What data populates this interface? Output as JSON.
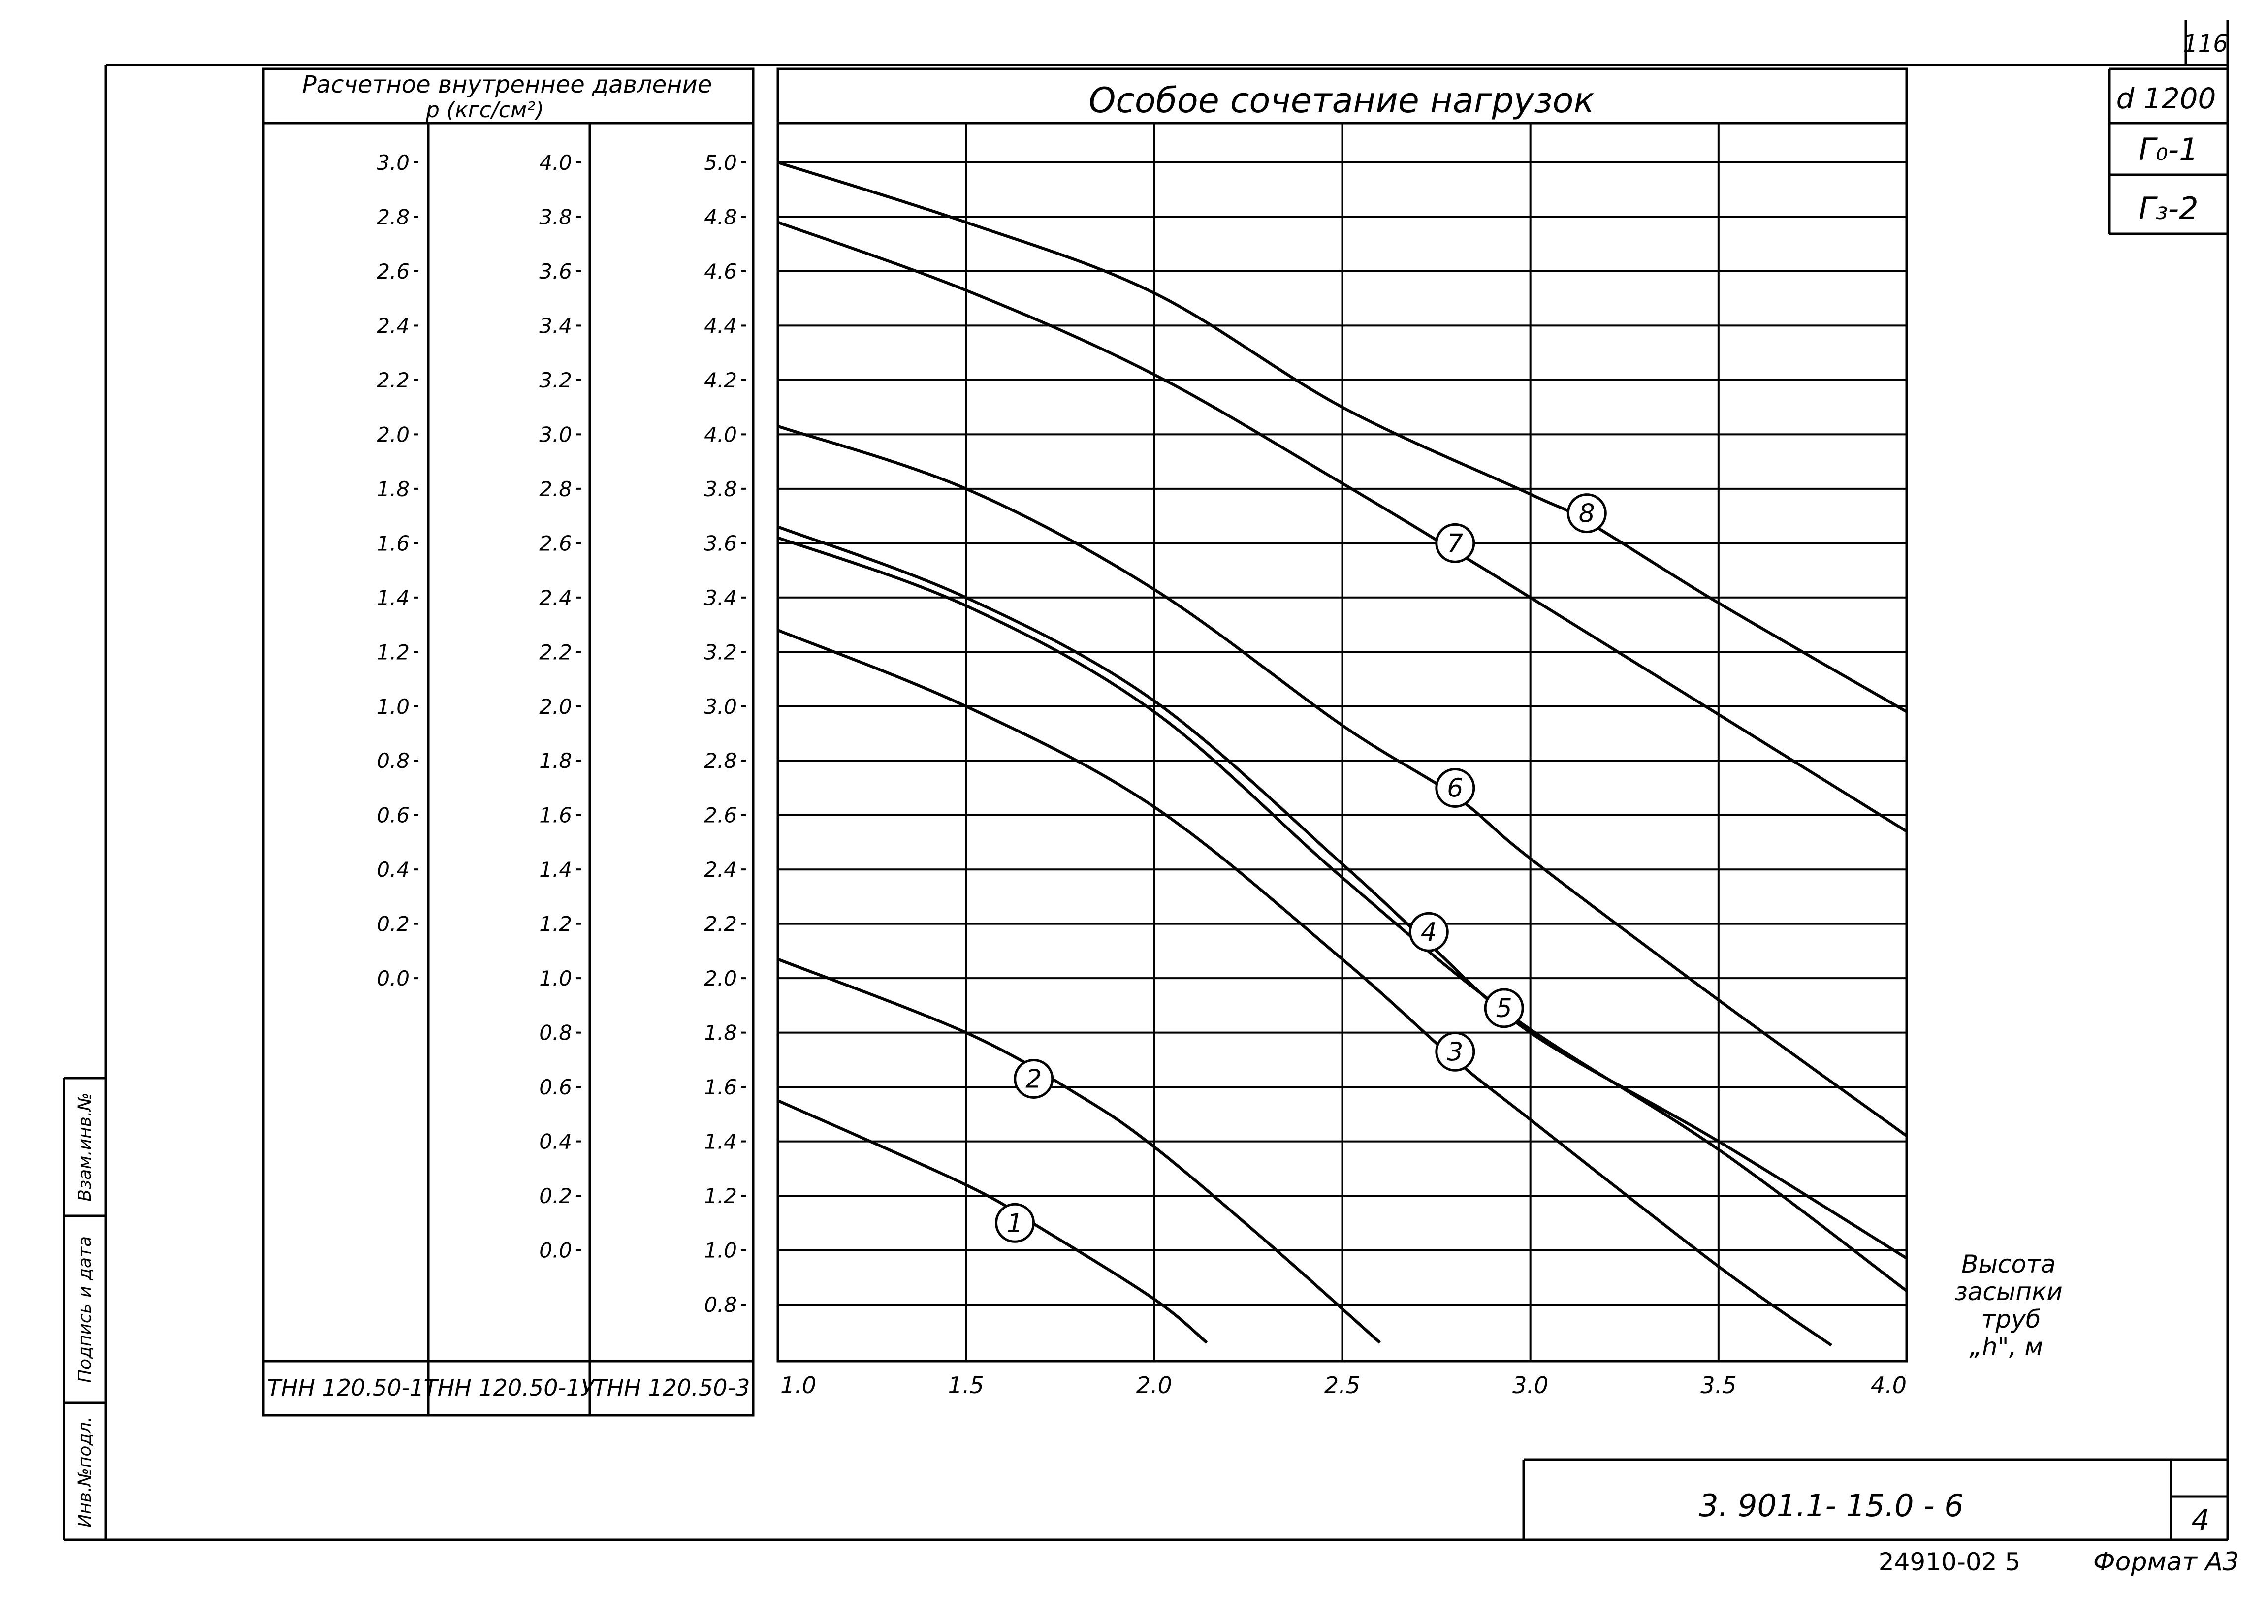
{
  "sheet": {
    "page_number": "116",
    "stamp": {
      "diameter": "d 1200",
      "g0": "Г₀-1",
      "g3": "Г₃-2"
    },
    "doc_code": "3. 901.1- 15.0 - 6",
    "sheet_number": "4",
    "bottom_code": "24910-02  5",
    "format": "Формат А3",
    "side_labels": [
      "Инв.№подл.",
      "Подпись и дата",
      "Взам.инв.№"
    ]
  },
  "pressure_table": {
    "header_line1": "Расчетное  внутреннее  давление",
    "header_line2": "р (кгс/см²)",
    "columns": [
      {
        "name": "ТНН 120.50-1",
        "ticks": [
          "3.0",
          "2.8",
          "2.6",
          "2.4",
          "2.2",
          "2.0",
          "1.8",
          "1.6",
          "1.4",
          "1.2",
          "1.0",
          "0.8",
          "0.6",
          "0.4",
          "0.2",
          "0.0"
        ]
      },
      {
        "name": "ТНН 120.50-1У",
        "ticks": [
          "4.0",
          "3.8",
          "3.6",
          "3.4",
          "3.2",
          "3.0",
          "2.8",
          "2.6",
          "2.4",
          "2.2",
          "2.0",
          "1.8",
          "1.6",
          "1.4",
          "1.2",
          "1.0",
          "0.8",
          "0.6",
          "0.4",
          "0.2",
          "0.0"
        ]
      },
      {
        "name": "ТНН 120.50-3",
        "ticks": [
          "5.0",
          "4.8",
          "4.6",
          "4.4",
          "4.2",
          "4.0",
          "3.8",
          "3.6",
          "3.4",
          "3.2",
          "3.0",
          "2.8",
          "2.6",
          "2.4",
          "2.2",
          "2.0",
          "1.8",
          "1.6",
          "1.4",
          "1.2",
          "1.0",
          "0.8"
        ]
      }
    ]
  },
  "chart_data": {
    "type": "line",
    "title": "Особое  сочетание  нагрузок",
    "xlabel": "Высота засыпки труб „h\", м",
    "xlim": [
      1.0,
      4.0
    ],
    "ylim": [
      0.7,
      5.0
    ],
    "x_ticks": [
      "1.0",
      "1.5",
      "2.0",
      "2.5",
      "3.0",
      "3.5",
      "4.0"
    ],
    "grid": true,
    "series": [
      {
        "name": "1",
        "points": [
          [
            1.0,
            1.55
          ],
          [
            1.5,
            1.24
          ],
          [
            1.7,
            1.08
          ],
          [
            2.0,
            0.82
          ],
          [
            2.14,
            0.66
          ]
        ]
      },
      {
        "name": "2",
        "points": [
          [
            1.0,
            2.07
          ],
          [
            1.5,
            1.8
          ],
          [
            1.8,
            1.57
          ],
          [
            2.0,
            1.38
          ],
          [
            2.3,
            1.03
          ],
          [
            2.6,
            0.66
          ]
        ]
      },
      {
        "name": "3",
        "points": [
          [
            1.0,
            3.28
          ],
          [
            1.5,
            3.0
          ],
          [
            2.0,
            2.63
          ],
          [
            2.5,
            2.07
          ],
          [
            2.8,
            1.7
          ],
          [
            3.0,
            1.48
          ],
          [
            3.5,
            0.94
          ],
          [
            3.8,
            0.65
          ]
        ]
      },
      {
        "name": "4",
        "points": [
          [
            1.0,
            3.66
          ],
          [
            1.5,
            3.4
          ],
          [
            2.0,
            3.02
          ],
          [
            2.5,
            2.42
          ],
          [
            2.72,
            2.14
          ],
          [
            3.0,
            1.8
          ],
          [
            3.5,
            1.4
          ],
          [
            4.0,
            0.97
          ]
        ]
      },
      {
        "name": "5",
        "points": [
          [
            1.0,
            3.62
          ],
          [
            1.5,
            3.37
          ],
          [
            2.0,
            2.98
          ],
          [
            2.5,
            2.37
          ],
          [
            2.95,
            1.86
          ],
          [
            3.5,
            1.37
          ],
          [
            4.0,
            0.85
          ]
        ]
      },
      {
        "name": "6",
        "points": [
          [
            1.0,
            4.03
          ],
          [
            1.5,
            3.8
          ],
          [
            2.0,
            3.43
          ],
          [
            2.5,
            2.93
          ],
          [
            2.8,
            2.67
          ],
          [
            3.0,
            2.44
          ],
          [
            3.5,
            1.92
          ],
          [
            4.0,
            1.42
          ]
        ]
      },
      {
        "name": "7",
        "points": [
          [
            1.0,
            4.78
          ],
          [
            1.5,
            4.53
          ],
          [
            2.0,
            4.22
          ],
          [
            2.5,
            3.82
          ],
          [
            2.8,
            3.57
          ],
          [
            3.0,
            3.4
          ],
          [
            3.5,
            2.97
          ],
          [
            4.0,
            2.54
          ]
        ]
      },
      {
        "name": "8",
        "points": [
          [
            1.0,
            5.0
          ],
          [
            1.5,
            4.78
          ],
          [
            2.0,
            4.52
          ],
          [
            2.5,
            4.1
          ],
          [
            3.0,
            3.78
          ],
          [
            3.15,
            3.68
          ],
          [
            3.5,
            3.38
          ],
          [
            4.0,
            2.98
          ]
        ]
      }
    ],
    "markers": [
      {
        "label": "1",
        "x": 1.63,
        "y": 1.1
      },
      {
        "label": "2",
        "x": 1.68,
        "y": 1.63
      },
      {
        "label": "3",
        "x": 2.8,
        "y": 1.73
      },
      {
        "label": "4",
        "x": 2.73,
        "y": 2.17
      },
      {
        "label": "5",
        "x": 2.93,
        "y": 1.89
      },
      {
        "label": "6",
        "x": 2.8,
        "y": 2.7
      },
      {
        "label": "7",
        "x": 2.8,
        "y": 3.6
      },
      {
        "label": "8",
        "x": 3.15,
        "y": 3.71
      }
    ]
  }
}
